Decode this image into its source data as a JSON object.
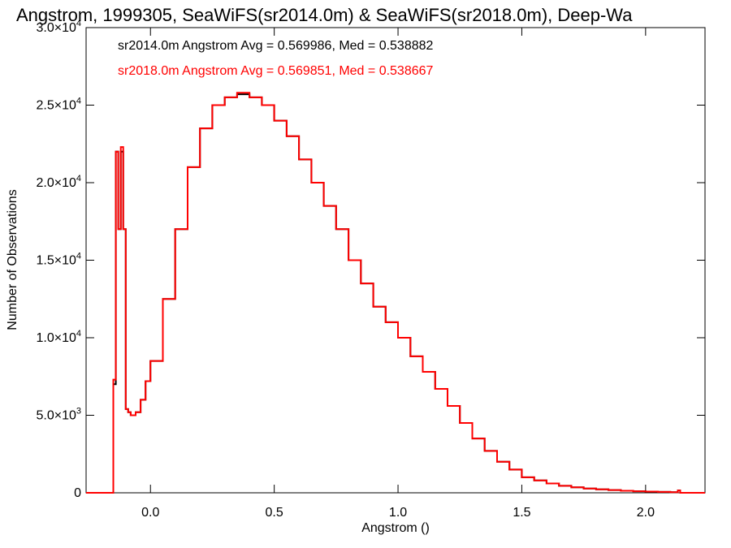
{
  "chart_data": {
    "type": "line",
    "title": "Angstrom, 1999305, SeaWiFS(sr2014.0m) & SeaWiFS(sr2018.0m), Deep-Wa",
    "xlabel": "Angstrom ()",
    "ylabel": "Number of Observations",
    "xlim": [
      -0.26,
      2.24
    ],
    "ylim": [
      0,
      30000
    ],
    "x_ticks": [
      0.0,
      0.5,
      1.0,
      1.5,
      2.0
    ],
    "x_tick_labels": [
      "0.0",
      "0.5",
      "1.0",
      "1.5",
      "2.0"
    ],
    "y_ticks": [
      0,
      5000,
      10000,
      15000,
      20000,
      25000,
      30000
    ],
    "y_tick_labels": [
      {
        "mant": "0",
        "exp": ""
      },
      {
        "mant": "5.0×10",
        "exp": "3"
      },
      {
        "mant": "1.0×10",
        "exp": "4"
      },
      {
        "mant": "1.5×10",
        "exp": "4"
      },
      {
        "mant": "2.0×10",
        "exp": "4"
      },
      {
        "mant": "2.5×10",
        "exp": "4"
      },
      {
        "mant": "3.0×10",
        "exp": "4"
      }
    ],
    "annotations": [
      {
        "text": "sr2014.0m Angstrom Avg = 0.569986, Med = 0.538882",
        "color": "#000000"
      },
      {
        "text": "sr2018.0m Angstrom Avg = 0.569851, Med = 0.538667",
        "color": "#ff0000"
      }
    ],
    "series": [
      {
        "color": "#000000",
        "x": [
          -0.26,
          -0.16,
          -0.15,
          -0.14,
          -0.13,
          -0.12,
          -0.11,
          -0.1,
          -0.09,
          -0.08,
          -0.06,
          -0.04,
          -0.02,
          0.0,
          0.05,
          0.1,
          0.15,
          0.2,
          0.25,
          0.3,
          0.35,
          0.4,
          0.45,
          0.5,
          0.55,
          0.6,
          0.65,
          0.7,
          0.75,
          0.8,
          0.85,
          0.9,
          0.95,
          1.0,
          1.05,
          1.1,
          1.15,
          1.2,
          1.25,
          1.3,
          1.35,
          1.4,
          1.45,
          1.5,
          1.55,
          1.6,
          1.65,
          1.7,
          1.75,
          1.8,
          1.85,
          1.9,
          1.95,
          2.0,
          2.05,
          2.1,
          2.13,
          2.14,
          2.24
        ],
        "y": [
          0,
          0,
          7000,
          22000,
          17000,
          22000,
          17000,
          5400,
          5200,
          5000,
          5200,
          6000,
          7200,
          8500,
          12500,
          17000,
          21000,
          23500,
          25000,
          25500,
          25700,
          25500,
          25000,
          24000,
          23000,
          21500,
          20000,
          18500,
          17000,
          15000,
          13500,
          12000,
          11000,
          10000,
          8800,
          7800,
          6700,
          5600,
          4500,
          3500,
          2700,
          2000,
          1500,
          1000,
          800,
          600,
          450,
          350,
          280,
          220,
          180,
          130,
          100,
          80,
          60,
          40,
          150,
          0,
          0
        ]
      },
      {
        "color": "#ff0000",
        "x": [
          -0.26,
          -0.16,
          -0.15,
          -0.14,
          -0.13,
          -0.12,
          -0.11,
          -0.1,
          -0.09,
          -0.08,
          -0.06,
          -0.04,
          -0.02,
          0.0,
          0.05,
          0.1,
          0.15,
          0.2,
          0.25,
          0.3,
          0.35,
          0.4,
          0.45,
          0.5,
          0.55,
          0.6,
          0.65,
          0.7,
          0.75,
          0.8,
          0.85,
          0.9,
          0.95,
          1.0,
          1.05,
          1.1,
          1.15,
          1.2,
          1.25,
          1.3,
          1.35,
          1.4,
          1.45,
          1.5,
          1.55,
          1.6,
          1.65,
          1.7,
          1.75,
          1.8,
          1.85,
          1.9,
          1.95,
          2.0,
          2.05,
          2.1,
          2.13,
          2.14,
          2.24
        ],
        "y": [
          0,
          0,
          7300,
          22000,
          17000,
          22300,
          17000,
          5400,
          5200,
          5000,
          5200,
          6000,
          7200,
          8500,
          12500,
          17000,
          21000,
          23500,
          25000,
          25500,
          25800,
          25500,
          25000,
          24000,
          23000,
          21500,
          20000,
          18500,
          17000,
          15000,
          13500,
          12000,
          11000,
          10000,
          8800,
          7800,
          6700,
          5600,
          4500,
          3500,
          2700,
          2000,
          1500,
          1000,
          800,
          600,
          450,
          350,
          280,
          220,
          180,
          130,
          100,
          80,
          60,
          40,
          150,
          0,
          0
        ]
      }
    ]
  }
}
